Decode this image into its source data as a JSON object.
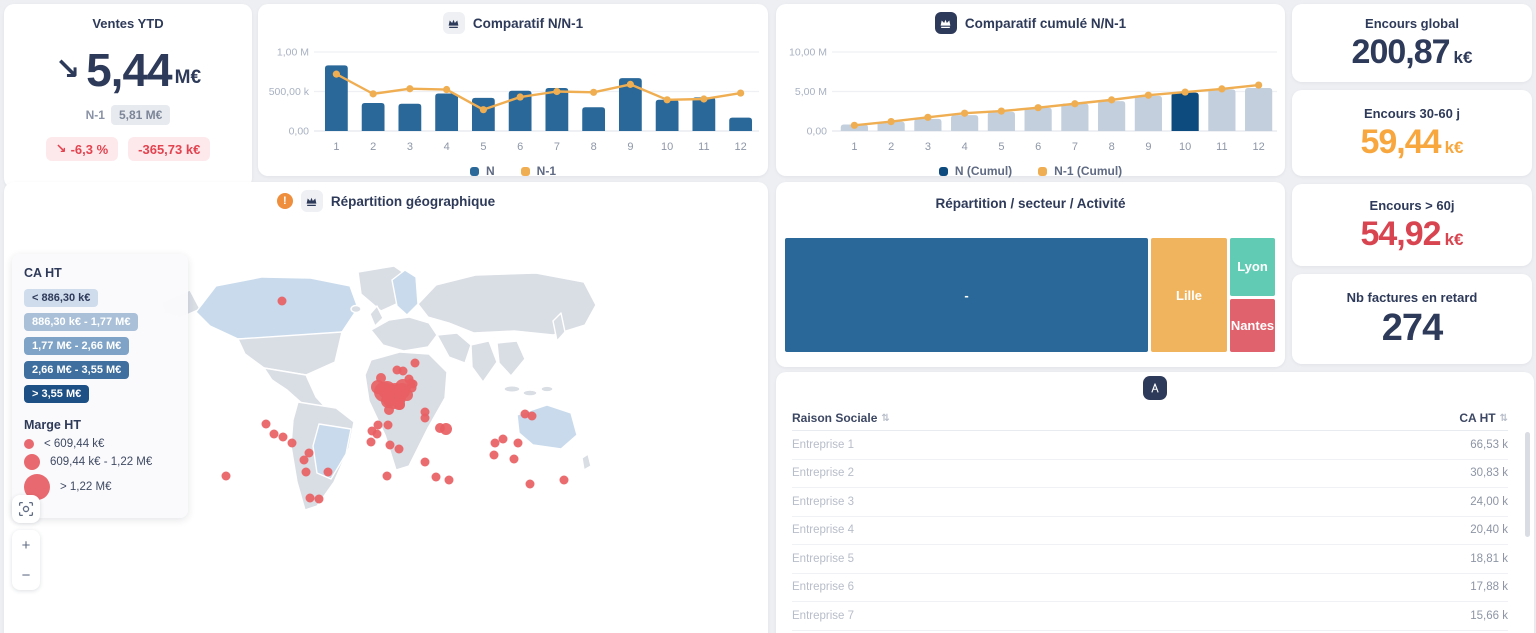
{
  "ventes": {
    "title": "Ventes YTD",
    "arrow": "↘",
    "value": "5,44",
    "unit": "M€",
    "n1_label": "N-1",
    "n1_value": "5,81 M€",
    "delta_arrow": "↘",
    "delta_pct": "-6,3 %",
    "delta_abs": "-365,73 k€"
  },
  "chart_data": [
    {
      "type": "bar",
      "title": "Comparatif N/N-1",
      "categories": [
        "1",
        "2",
        "3",
        "4",
        "5",
        "6",
        "7",
        "8",
        "9",
        "10",
        "11",
        "12"
      ],
      "unit": "k€",
      "ylim": [
        0,
        1000
      ],
      "yticks": [
        {
          "v": 0,
          "label": "0,00"
        },
        {
          "v": 500,
          "label": "500,00 k"
        },
        {
          "v": 1000,
          "label": "1,00 M"
        }
      ],
      "bar_width_ratio": 0.62,
      "legend_position": "bottom",
      "series": [
        {
          "name": "N",
          "render": "bar",
          "color": "#2a6899",
          "values": [
            830,
            355,
            345,
            475,
            420,
            510,
            545,
            300,
            670,
            395,
            425,
            170
          ]
        },
        {
          "name": "N-1",
          "render": "line",
          "color": "#f0ae52",
          "values": [
            720,
            470,
            535,
            525,
            270,
            430,
            500,
            490,
            590,
            395,
            405,
            480
          ]
        }
      ]
    },
    {
      "type": "bar",
      "title": "Comparatif cumulé N/N-1",
      "categories": [
        "1",
        "2",
        "3",
        "4",
        "5",
        "6",
        "7",
        "8",
        "9",
        "10",
        "11",
        "12"
      ],
      "unit": "M€",
      "ylim": [
        0,
        10
      ],
      "yticks": [
        {
          "v": 0,
          "label": "0,00"
        },
        {
          "v": 5,
          "label": "5,00 M"
        },
        {
          "v": 10,
          "label": "10,00 M"
        }
      ],
      "bar_width_ratio": 0.74,
      "legend_position": "bottom",
      "series": [
        {
          "name": "N (Cumul)",
          "render": "bar",
          "color": "#c3cfdc",
          "legend_color": "#0d4a7d",
          "highlight": {
            "index": 9,
            "color": "#0d4a7d"
          },
          "values": [
            0.83,
            1.19,
            1.53,
            2.01,
            2.43,
            2.94,
            3.48,
            3.78,
            4.45,
            4.85,
            5.27,
            5.44
          ]
        },
        {
          "name": "N-1 (Cumul)",
          "render": "line",
          "color": "#f0ae52",
          "values": [
            0.72,
            1.19,
            1.73,
            2.25,
            2.52,
            2.95,
            3.45,
            3.94,
            4.53,
            4.93,
            5.33,
            5.81
          ]
        }
      ]
    }
  ],
  "kpis": [
    {
      "title": "Encours global",
      "value": "200,87",
      "unit": "k€",
      "color": "#2e3a59"
    },
    {
      "title": "Encours 30-60 j",
      "value": "59,44",
      "unit": "k€",
      "color": "#f7a73e"
    },
    {
      "title": "Encours > 60j",
      "value": "54,92",
      "unit": "k€",
      "color": "#d84550"
    },
    {
      "title": "Nb factures en retard",
      "value": "274",
      "unit": "",
      "color": "#2e3a59"
    }
  ],
  "map": {
    "title": "Répartition géographique",
    "colors": {
      "land": "#d9dde4",
      "highlight": "#c8daec",
      "bubble": "#e85f63"
    },
    "legend_ca": {
      "title": "CA HT",
      "classes": [
        {
          "label": "< 886,30 k€",
          "bg": "#cfdcec",
          "text": "#2e3a59"
        },
        {
          "label": "886,30 k€ - 1,77 M€",
          "bg": "#a9c0d8",
          "text": "#ffffff"
        },
        {
          "label": "1,77 M€ - 2,66 M€",
          "bg": "#7fa3c6",
          "text": "#ffffff"
        },
        {
          "label": "2,66 M€ - 3,55 M€",
          "bg": "#3f6f9f",
          "text": "#ffffff"
        },
        {
          "label": "> 3,55 M€",
          "bg": "#1d5084",
          "text": "#ffffff"
        }
      ]
    },
    "legend_marge": {
      "title": "Marge HT",
      "classes": [
        {
          "label": "< 609,44 k€"
        },
        {
          "label": "609,44 k€ - 1,22 M€"
        },
        {
          "label": "> 1,22 M€"
        }
      ]
    },
    "controls": {
      "zoom_in": "+",
      "zoom_out": "−"
    },
    "points": [
      [
        278,
        119,
        4.5
      ],
      [
        374,
        205,
        7
      ],
      [
        383,
        208,
        9
      ],
      [
        391,
        212,
        11
      ],
      [
        399,
        205,
        8
      ],
      [
        384,
        219,
        7
      ],
      [
        395,
        222,
        6
      ],
      [
        403,
        213,
        6
      ],
      [
        377,
        196,
        5
      ],
      [
        405,
        197,
        4.5
      ],
      [
        409,
        202,
        4.5
      ],
      [
        380,
        210,
        10
      ],
      [
        390,
        215,
        12
      ],
      [
        398,
        209,
        8
      ],
      [
        393,
        188,
        4.5
      ],
      [
        399,
        189,
        4.5
      ],
      [
        411,
        181,
        4.5
      ],
      [
        407,
        201,
        4.5
      ],
      [
        408,
        206,
        4.5
      ],
      [
        396,
        223,
        5
      ],
      [
        385,
        228,
        5
      ],
      [
        421,
        230,
        4.5
      ],
      [
        421,
        236,
        4.5
      ],
      [
        436,
        246,
        5
      ],
      [
        442,
        247,
        6
      ],
      [
        374,
        243,
        4.5
      ],
      [
        368,
        249,
        4.5
      ],
      [
        373,
        252,
        4.5
      ],
      [
        384,
        243,
        4.5
      ],
      [
        367,
        260,
        4.5
      ],
      [
        386,
        263,
        4.5
      ],
      [
        395,
        267,
        4.5
      ],
      [
        421,
        280,
        4.5
      ],
      [
        432,
        295,
        4.5
      ],
      [
        445,
        298,
        4.5
      ],
      [
        383,
        294,
        4.5
      ],
      [
        262,
        242,
        4.5
      ],
      [
        270,
        252,
        4.5
      ],
      [
        279,
        255,
        4.5
      ],
      [
        288,
        261,
        4.5
      ],
      [
        305,
        271,
        4.5
      ],
      [
        300,
        278,
        4.5
      ],
      [
        302,
        290,
        4.5
      ],
      [
        324,
        290,
        4.5
      ],
      [
        306,
        316,
        4.5
      ],
      [
        315,
        317,
        4.5
      ],
      [
        222,
        294,
        4.5
      ],
      [
        491,
        261,
        4.5
      ],
      [
        499,
        257,
        4.5
      ],
      [
        514,
        261,
        4.5
      ],
      [
        490,
        273,
        4.5
      ],
      [
        510,
        277,
        4.5
      ],
      [
        521,
        232,
        4.5
      ],
      [
        528,
        234,
        4.5
      ],
      [
        526,
        302,
        4.5
      ],
      [
        560,
        298,
        4.5
      ]
    ]
  },
  "treemap": {
    "title": "Répartition / secteur / Activité",
    "main": {
      "label": "-",
      "color": "#2a6899",
      "width_pct": 75
    },
    "second": {
      "label": "Lille",
      "color": "#f0b45e",
      "width_pct": 15.7
    },
    "col_width_pct": 9.3,
    "col_top": {
      "label": "Lyon",
      "color": "#61cbb3",
      "height_pct": 52
    },
    "col_bottom": {
      "label": "Nantes",
      "color": "#e0626c",
      "height_pct": 48
    }
  },
  "table": {
    "columns": [
      "Raison Sociale",
      "CA HT"
    ],
    "rows": [
      {
        "name": "Entreprise 1",
        "value": "66,53 k"
      },
      {
        "name": "Entreprise 2",
        "value": "30,83 k"
      },
      {
        "name": "Entreprise 3",
        "value": "24,00 k"
      },
      {
        "name": "Entreprise 4",
        "value": "20,40 k"
      },
      {
        "name": "Entreprise 5",
        "value": "18,81 k"
      },
      {
        "name": "Entreprise 6",
        "value": "17,88 k"
      },
      {
        "name": "Entreprise 7",
        "value": "15,66 k"
      }
    ]
  }
}
